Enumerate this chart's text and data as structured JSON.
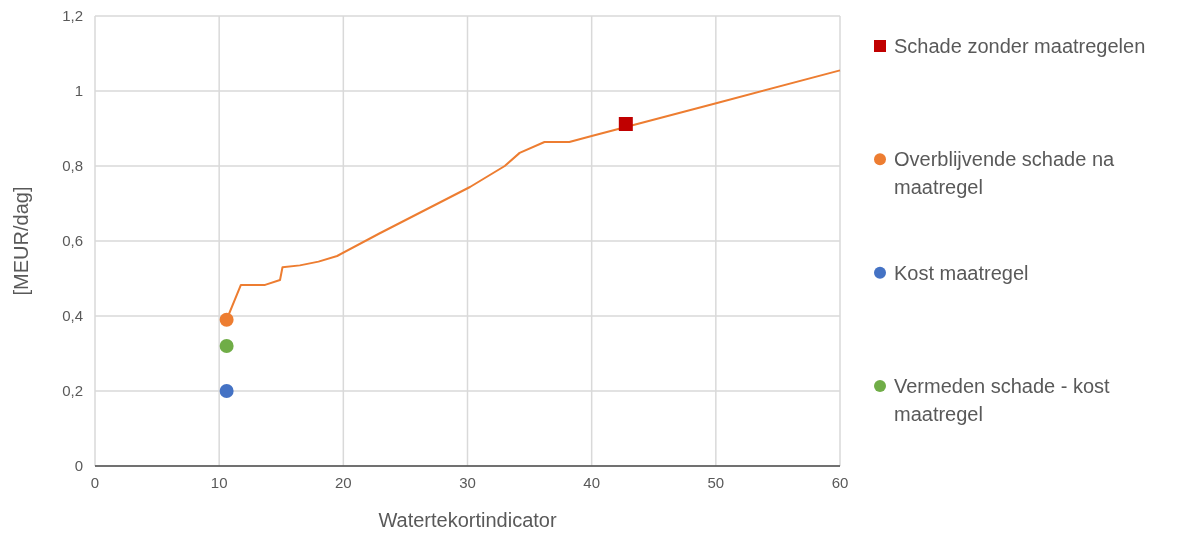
{
  "chart_data": {
    "type": "scatter",
    "xlabel": "Watertekortindicator",
    "ylabel": "[MEUR/dag]",
    "xlim": [
      0,
      60
    ],
    "ylim": [
      0,
      1.2
    ],
    "xticks": [
      0,
      10,
      20,
      30,
      40,
      50,
      60
    ],
    "yticks": [
      0,
      {
        "value": 0.2,
        "label": "0,2"
      },
      {
        "value": 0.4,
        "label": "0,4"
      },
      {
        "value": 0.6,
        "label": "0,6"
      },
      {
        "value": 0.8,
        "label": "0,8"
      },
      1,
      {
        "value": 1.2,
        "label": "1,2"
      }
    ],
    "grid": true,
    "legend": "right",
    "series": [
      {
        "type": "line",
        "marker": "none",
        "color": "#ed7d31",
        "x": [
          10.6,
          11.75,
          13.7,
          14.9,
          15.1,
          16.5,
          18,
          19.5,
          22.9,
          30.2,
          33,
          34.2,
          36.2,
          38.2,
          40,
          50.1,
          60
        ],
        "values": [
          0.39,
          0.483,
          0.483,
          0.496,
          0.53,
          0.535,
          0.545,
          0.56,
          0.62,
          0.744,
          0.8,
          0.835,
          0.864,
          0.864,
          0.88,
          0.968,
          1.055
        ]
      },
      {
        "name": "Schade zonder maatregelen",
        "marker": "square",
        "color": "#c00000",
        "x": [
          42.75
        ],
        "values": [
          0.912
        ]
      },
      {
        "name": "Overblijvende schade na maatregel",
        "marker": "circle",
        "color": "#ed7d31",
        "x": [
          10.6
        ],
        "values": [
          0.39
        ]
      },
      {
        "name": "Kost maatregel",
        "marker": "circle",
        "color": "#4472c4",
        "x": [
          10.6
        ],
        "values": [
          0.2
        ]
      },
      {
        "name": "Vermeden schade - kost maatregel",
        "marker": "circle",
        "color": "#70ad47",
        "x": [
          10.6
        ],
        "values": [
          0.32
        ]
      }
    ]
  }
}
